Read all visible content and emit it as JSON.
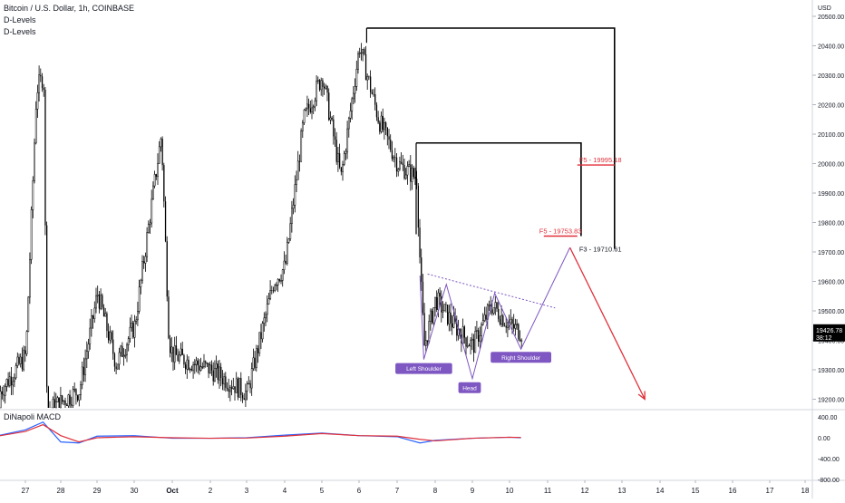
{
  "header": {
    "title": "Bitcoin / U.S. Dollar, 1h, COINBASE",
    "indicator_1": "D-Levels",
    "indicator_2": "D-Levels"
  },
  "price_axis": {
    "currency": "USD",
    "ticks": [
      "20500.00",
      "20400.00",
      "20300.00",
      "20200.00",
      "20100.00",
      "20000.00",
      "19900.00",
      "19800.00",
      "19700.00",
      "19600.00",
      "19500.00",
      "19400.00",
      "19300.00",
      "19200.00"
    ],
    "last_price": "19426.78",
    "countdown": "38:12",
    "last_price_color": "#000000"
  },
  "macd": {
    "title": "DiNapoli MACD",
    "ticks": [
      "400.00",
      "0.00",
      "-400.00",
      "-800.00"
    ]
  },
  "time_axis": {
    "labels": [
      "27",
      "28",
      "29",
      "30",
      "Oct",
      "2",
      "3",
      "4",
      "5",
      "6",
      "7",
      "8",
      "9",
      "10",
      "11",
      "12",
      "13",
      "14",
      "15",
      "16",
      "17",
      "18"
    ]
  },
  "annotations": {
    "left_shoulder": "Left Shoulder",
    "head": "Head",
    "right_shoulder": "Right Shoulder",
    "f5_upper": "F5 - 19995.18",
    "f5_lower": "F5 - 19753.83",
    "f3": "F3 - 19710.61"
  },
  "colors": {
    "candle": "#000000",
    "pattern": "#7e57c2",
    "fib_label": "#e0303a",
    "arrow": "#e0303a",
    "macd_fast": "#2962ff",
    "macd_slow": "#e0303a",
    "box": "#000000"
  },
  "chart_data": {
    "type": "candlestick",
    "symbol": "Bitcoin / U.S. Dollar",
    "interval": "1h",
    "exchange": "COINBASE",
    "y_unit": "USD",
    "ylim": [
      19150,
      20550
    ],
    "last_price": 19426.78,
    "x_range": [
      "27",
      "18"
    ],
    "price_path": [
      {
        "x": "26",
        "price": 19170
      },
      {
        "x": "27",
        "price": 19350
      },
      {
        "x": "27.3",
        "price": 20250
      },
      {
        "x": "27.5",
        "price": 20300
      },
      {
        "x": "27.6",
        "price": 19160
      },
      {
        "x": "28.5",
        "price": 19230
      },
      {
        "x": "29",
        "price": 19560
      },
      {
        "x": "29.5",
        "price": 19320
      },
      {
        "x": "30",
        "price": 19450
      },
      {
        "x": "30.7",
        "price": 20100
      },
      {
        "x": "30.9",
        "price": 19400
      },
      {
        "x": "Oct 1",
        "price": 19350
      },
      {
        "x": "2",
        "price": 19300
      },
      {
        "x": "3",
        "price": 19220
      },
      {
        "x": "3.7",
        "price": 19600
      },
      {
        "x": "4",
        "price": 19650
      },
      {
        "x": "4.5",
        "price": 20150
      },
      {
        "x": "5",
        "price": 20300
      },
      {
        "x": "5.5",
        "price": 19950
      },
      {
        "x": "6",
        "price": 20400
      },
      {
        "x": "6.5",
        "price": 20150
      },
      {
        "x": "7",
        "price": 20000
      },
      {
        "x": "7.5",
        "price": 19950
      },
      {
        "x": "7.6",
        "price": 19620
      },
      {
        "x": "7.7",
        "price": 19380
      },
      {
        "x": "8",
        "price": 19540
      },
      {
        "x": "8.5",
        "price": 19450
      },
      {
        "x": "9",
        "price": 19380
      },
      {
        "x": "9.5",
        "price": 19520
      },
      {
        "x": "10",
        "price": 19450
      },
      {
        "x": "10.3",
        "price": 19427
      }
    ],
    "pattern": {
      "name": "inverse head and shoulders",
      "left_shoulder": {
        "x": "7.7",
        "price": 19335
      },
      "head": {
        "x": "9",
        "price": 19270
      },
      "right_shoulder": {
        "x": "10.3",
        "price": 19370
      },
      "neckline": [
        {
          "x": "7.8",
          "price": 19625
        },
        {
          "x": "11.2",
          "price": 19510
        }
      ]
    },
    "projection": [
      {
        "x": "10.3",
        "price": 19370
      },
      {
        "x": "11.6",
        "price": 19715
      },
      {
        "x": "13.6",
        "price": 19200
      }
    ],
    "fib_levels": [
      {
        "label": "F5 - 19995.18",
        "price": 19995.18
      },
      {
        "label": "F5 - 19753.83",
        "price": 19753.83
      },
      {
        "label": "F3 - 19710.61",
        "price": 19710.61
      }
    ],
    "boxes": [
      {
        "x": [
          "6.2",
          "12.8"
        ],
        "price": [
          19710.61,
          20460
        ]
      },
      {
        "x": [
          "7.5",
          "11.9"
        ],
        "price": [
          19753.83,
          20070
        ]
      }
    ],
    "macd": {
      "name": "DiNapoli MACD",
      "ylim": [
        -800,
        400
      ],
      "points": [
        {
          "x": "26",
          "fast": 0,
          "slow": 0
        },
        {
          "x": "27",
          "fast": 150,
          "slow": 120
        },
        {
          "x": "27.5",
          "fast": 300,
          "slow": 250
        },
        {
          "x": "28",
          "fast": -80,
          "slow": 40
        },
        {
          "x": "28.5",
          "fast": -100,
          "slow": -80
        },
        {
          "x": "29",
          "fast": 30,
          "slow": 0
        },
        {
          "x": "30",
          "fast": 40,
          "slow": 20
        },
        {
          "x": "Oct 1",
          "fast": -10,
          "slow": 0
        },
        {
          "x": "2",
          "fast": -10,
          "slow": -10
        },
        {
          "x": "3",
          "fast": 0,
          "slow": -5
        },
        {
          "x": "4",
          "fast": 50,
          "slow": 30
        },
        {
          "x": "5",
          "fast": 90,
          "slow": 80
        },
        {
          "x": "6",
          "fast": 40,
          "slow": 40
        },
        {
          "x": "7",
          "fast": 20,
          "slow": 30
        },
        {
          "x": "7.6",
          "fast": -100,
          "slow": -30
        },
        {
          "x": "8",
          "fast": -50,
          "slow": -60
        },
        {
          "x": "9",
          "fast": -10,
          "slow": -10
        },
        {
          "x": "10",
          "fast": 10,
          "slow": 10
        },
        {
          "x": "10.3",
          "fast": 0,
          "slow": 5
        }
      ]
    }
  }
}
